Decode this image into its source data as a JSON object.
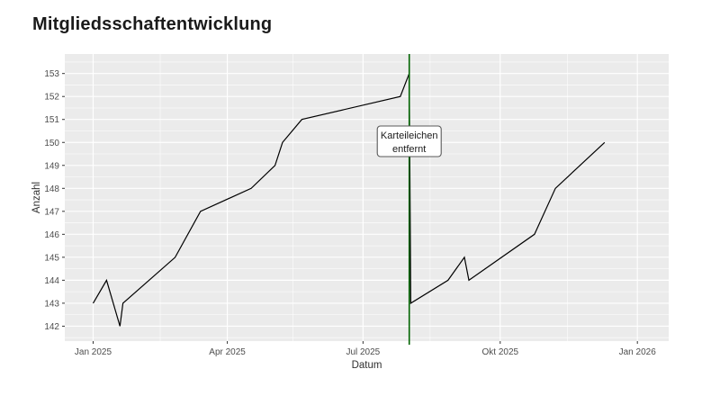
{
  "chart_data": {
    "type": "line",
    "title": "Mitgliedsschaftentwicklung",
    "xlabel": "Datum",
    "ylabel": "Anzahl",
    "panel_bg": "#EBEBEB",
    "grid_color": "#FFFFFF",
    "tick_color": "#333333",
    "tick_label_color": "#4D4D4D",
    "axis_title_color": "#303030",
    "line_color": "#000000",
    "ylim": [
      141.35,
      153.85
    ],
    "xlim": [
      "2024-12-13",
      "2026-01-22"
    ],
    "y_ticks": [
      142,
      143,
      144,
      145,
      146,
      147,
      148,
      149,
      150,
      151,
      152,
      153
    ],
    "x_ticks": [
      {
        "date": "2025-01-01",
        "label": "Jan 2025"
      },
      {
        "date": "2025-04-01",
        "label": "Apr 2025"
      },
      {
        "date": "2025-07-01",
        "label": "Jul 2025"
      },
      {
        "date": "2025-10-01",
        "label": "Okt 2025"
      },
      {
        "date": "2026-01-01",
        "label": "Jan 2026"
      }
    ],
    "x_minor_ticks": [
      "2025-02-15",
      "2025-05-15",
      "2025-08-15",
      "2025-11-15"
    ],
    "series": [
      {
        "name": "Mitglieder",
        "color": "#000000",
        "points": [
          {
            "date": "2025-01-01",
            "value": 143
          },
          {
            "date": "2025-01-10",
            "value": 144
          },
          {
            "date": "2025-01-19",
            "value": 142
          },
          {
            "date": "2025-01-21",
            "value": 143
          },
          {
            "date": "2025-02-25",
            "value": 145
          },
          {
            "date": "2025-03-14",
            "value": 147
          },
          {
            "date": "2025-04-17",
            "value": 148
          },
          {
            "date": "2025-05-03",
            "value": 149
          },
          {
            "date": "2025-05-08",
            "value": 150
          },
          {
            "date": "2025-05-21",
            "value": 151
          },
          {
            "date": "2025-07-26",
            "value": 152
          },
          {
            "date": "2025-08-01",
            "value": 153
          },
          {
            "date": "2025-08-02",
            "value": 143
          },
          {
            "date": "2025-08-27",
            "value": 144
          },
          {
            "date": "2025-09-07",
            "value": 145
          },
          {
            "date": "2025-09-10",
            "value": 144
          },
          {
            "date": "2025-10-24",
            "value": 146
          },
          {
            "date": "2025-11-07",
            "value": 148
          },
          {
            "date": "2025-12-10",
            "value": 150
          }
        ]
      }
    ],
    "event_line": {
      "date": "2025-08-01",
      "color": "#006400",
      "label_lines": [
        "Karteileichen",
        "entfernt"
      ],
      "label_bg": "#FFFFFF",
      "label_border": "#5a5a5a",
      "label_text_color": "#1a1a1a"
    }
  }
}
